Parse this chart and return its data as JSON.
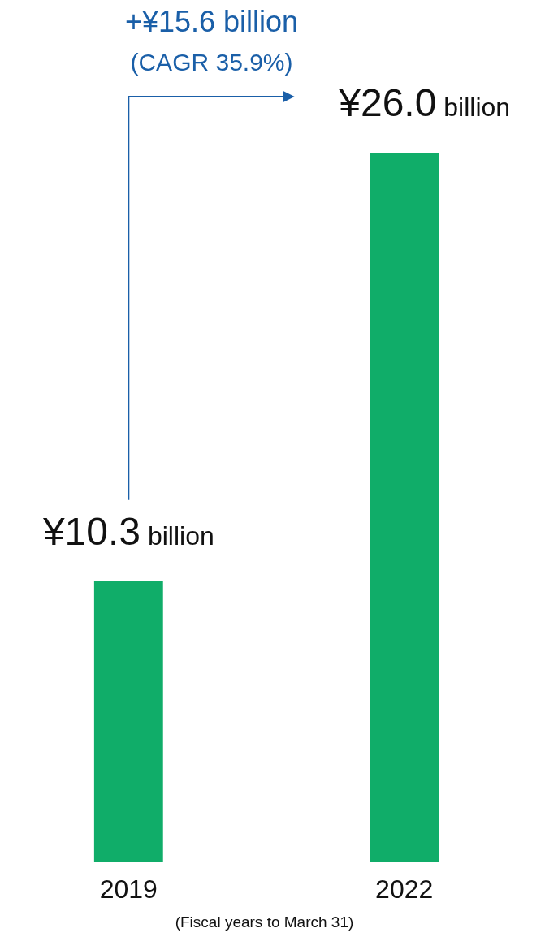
{
  "chart_data": {
    "type": "bar",
    "categories": [
      "2019",
      "2022"
    ],
    "values": [
      10.3,
      26.0
    ],
    "color": "#10ad69",
    "value_labels": [
      "¥10.3 billion",
      "¥26.0 billion"
    ],
    "annotations": [
      "+¥15.6 billion",
      "(CAGR 35.9%)",
      "(Fiscal years to March 31)"
    ]
  }
}
